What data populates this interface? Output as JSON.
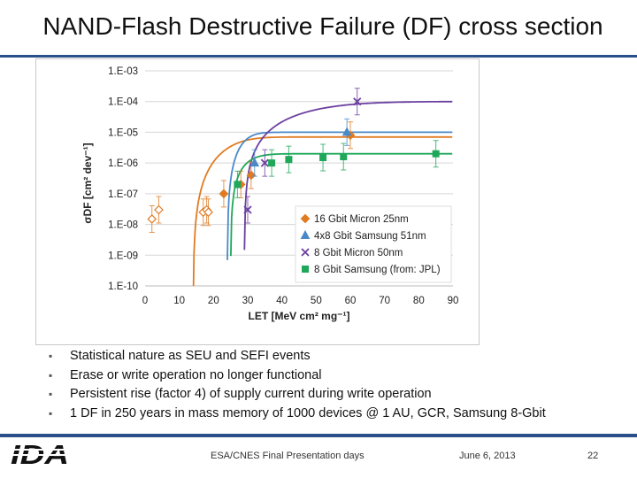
{
  "title": "NAND-Flash Destructive Failure (DF) cross section",
  "logo_text": "IDA",
  "bullets": [
    "Statistical nature as SEU and SEFI events",
    "Erase or write operation no longer functional",
    "Persistent rise (factor 4) of supply current during write operation",
    "1 DF in 250 years in mass memory of 1000 devices @ 1 AU, GCR, Samsung 8-Gbit"
  ],
  "footer": {
    "presentation": "ESA/CNES Final Presentation days",
    "date": "June 6, 2013",
    "page": "22"
  },
  "chart_data": {
    "type": "scatter",
    "xlabel": "LET [MeV cm² mg⁻¹]",
    "ylabel": "σDF [cm² dev⁻¹]",
    "xlim": [
      0,
      90
    ],
    "xticks": [
      "0",
      "10",
      "20",
      "30",
      "40",
      "50",
      "60",
      "70",
      "80",
      "90"
    ],
    "ylim": [
      1e-10,
      0.001
    ],
    "yscale": "log",
    "yticks": [
      "1.E-10",
      "1.E-09",
      "1.E-08",
      "1.E-07",
      "1.E-06",
      "1.E-05",
      "1.E-04",
      "1.E-03"
    ],
    "grid": "horizontal",
    "legend_position": "lower-right",
    "series": [
      {
        "name": "16 Gbit Micron 25nm",
        "marker": "diamond",
        "color": "#e07b22",
        "points": [
          [
            23,
            1e-07
          ],
          [
            28,
            2e-07
          ],
          [
            31,
            4e-07
          ],
          [
            60,
            8e-06
          ]
        ],
        "open_points": [
          [
            2,
            1.5e-08
          ],
          [
            4,
            3e-08
          ],
          [
            17,
            2.5e-08
          ],
          [
            18,
            3e-08
          ],
          [
            18.5,
            2.5e-08
          ]
        ],
        "fit": {
          "threshold": 14,
          "width": 13,
          "s": 2.3,
          "sat": 7e-06
        }
      },
      {
        "name": "4x8 Gbit Samsung 51nm",
        "marker": "triangle",
        "color": "#4a89c8",
        "points": [
          [
            32,
            1e-06
          ],
          [
            59,
            1e-05
          ]
        ],
        "open_points": [],
        "fit": {
          "threshold": 24,
          "width": 6,
          "s": 2.0,
          "sat": 1e-05
        }
      },
      {
        "name": "8 Gbit Micron 50nm",
        "marker": "x",
        "color": "#6b3fa0",
        "points": [
          [
            30,
            3e-08
          ],
          [
            35,
            1e-06
          ],
          [
            62,
            0.0001
          ]
        ],
        "open_points": [],
        "fit": {
          "threshold": 29,
          "width": 24,
          "s": 1.8,
          "sat": 0.0001
        }
      },
      {
        "name": "8 Gbit Samsung (from: JPL)",
        "marker": "square",
        "color": "#1fa85a",
        "points": [
          [
            27,
            2e-07
          ],
          [
            37,
            1e-06
          ],
          [
            42,
            1.3e-06
          ],
          [
            52,
            1.5e-06
          ],
          [
            58,
            1.6e-06
          ],
          [
            85,
            2e-06
          ]
        ],
        "open_points": [],
        "fit": {
          "threshold": 25,
          "width": 6,
          "s": 1.6,
          "sat": 2e-06
        }
      }
    ]
  }
}
